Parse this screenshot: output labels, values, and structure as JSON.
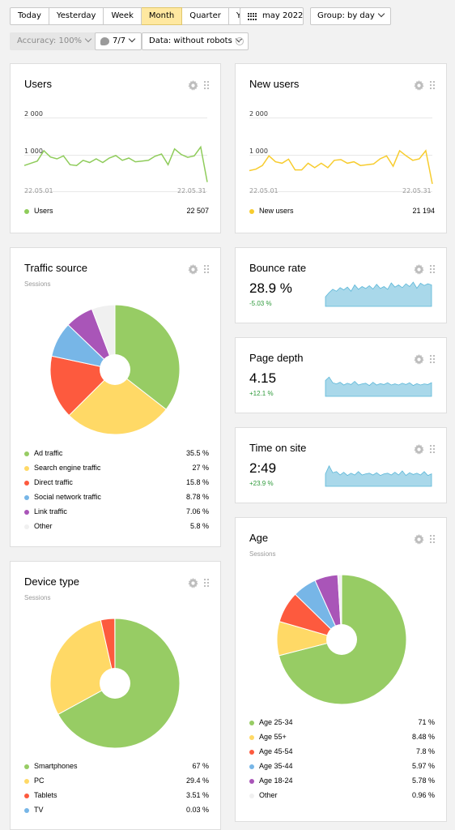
{
  "toolbar": {
    "periods": [
      "Today",
      "Yesterday",
      "Week",
      "Month",
      "Quarter",
      "Year"
    ],
    "active_period": "Month",
    "date_label": "may 2022",
    "group_label": "Group: by day",
    "accuracy_label": "Accuracy: 100%",
    "segments_label": "7/7",
    "data_label": "Data: without robots",
    "help_glyph": "?"
  },
  "users": {
    "title": "Users",
    "y_ticks": [
      "2 000",
      "1 000"
    ],
    "x_ticks": [
      "22.05.01",
      "22.05.31"
    ],
    "legend_label": "Users",
    "total": "22 507",
    "color": "#8fcc5b"
  },
  "new_users": {
    "title": "New users",
    "y_ticks": [
      "2 000",
      "1 000"
    ],
    "x_ticks": [
      "22.05.01",
      "22.05.31"
    ],
    "legend_label": "New users",
    "total": "21 194",
    "color": "#f7cc2e"
  },
  "traffic": {
    "title": "Traffic source",
    "subtitle": "Sessions",
    "items": [
      {
        "label": "Ad traffic",
        "value": "35.5 %",
        "color": "#97cc64"
      },
      {
        "label": "Search engine traffic",
        "value": "27 %",
        "color": "#ffd966"
      },
      {
        "label": "Direct traffic",
        "value": "15.8 %",
        "color": "#fd5a3e"
      },
      {
        "label": "Social network traffic",
        "value": "8.78 %",
        "color": "#77b6e7"
      },
      {
        "label": "Link traffic",
        "value": "7.06 %",
        "color": "#a955b8"
      },
      {
        "label": "Other",
        "value": "5.8 %",
        "color": "#f0f0f0"
      }
    ]
  },
  "bounce": {
    "title": "Bounce rate",
    "value": "28.9 %",
    "delta": "-5.03 %"
  },
  "depth": {
    "title": "Page depth",
    "value": "4.15",
    "delta": "+12.1 %"
  },
  "time": {
    "title": "Time on site",
    "value": "2:49",
    "delta": "+23.9 %"
  },
  "device": {
    "title": "Device type",
    "subtitle": "Sessions",
    "items": [
      {
        "label": "Smartphones",
        "value": "67 %",
        "color": "#97cc64"
      },
      {
        "label": "PC",
        "value": "29.4 %",
        "color": "#ffd966"
      },
      {
        "label": "Tablets",
        "value": "3.51 %",
        "color": "#fd5a3e"
      },
      {
        "label": "TV",
        "value": "0.03 %",
        "color": "#77b6e7"
      }
    ]
  },
  "age": {
    "title": "Age",
    "subtitle": "Sessions",
    "items": [
      {
        "label": "Age 25-34",
        "value": "71 %",
        "color": "#97cc64"
      },
      {
        "label": "Age 55+",
        "value": "8.48 %",
        "color": "#ffd966"
      },
      {
        "label": "Age 45-54",
        "value": "7.8 %",
        "color": "#fd5a3e"
      },
      {
        "label": "Age 35-44",
        "value": "5.97 %",
        "color": "#77b6e7"
      },
      {
        "label": "Age 18-24",
        "value": "5.78 %",
        "color": "#a955b8"
      },
      {
        "label": "Other",
        "value": "0.96 %",
        "color": "#f0f0f0"
      }
    ]
  },
  "chart_data": [
    {
      "type": "line",
      "series": [
        {
          "name": "Users",
          "values": [
            700,
            760,
            820,
            1100,
            930,
            880,
            960,
            720,
            700,
            840,
            780,
            880,
            780,
            900,
            970,
            840,
            900,
            800,
            820,
            840,
            950,
            1010,
            720,
            1150,
            1000,
            920,
            960,
            1200,
            250
          ]
        }
      ],
      "x_range": [
        "22.05.01",
        "22.05.31"
      ],
      "ylim": [
        0,
        2000
      ]
    },
    {
      "type": "line",
      "series": [
        {
          "name": "New users",
          "values": [
            560,
            600,
            700,
            960,
            800,
            760,
            870,
            580,
            580,
            760,
            640,
            760,
            640,
            840,
            860,
            760,
            800,
            700,
            720,
            740,
            880,
            960,
            680,
            1100,
            960,
            840,
            880,
            1100,
            200
          ]
        }
      ],
      "x_range": [
        "22.05.01",
        "22.05.31"
      ],
      "ylim": [
        0,
        2000
      ]
    },
    {
      "type": "pie",
      "title": "Traffic source",
      "labels": [
        "Ad traffic",
        "Search engine traffic",
        "Direct traffic",
        "Social network traffic",
        "Link traffic",
        "Other"
      ],
      "values": [
        35.5,
        27,
        15.8,
        8.78,
        7.06,
        5.8
      ]
    },
    {
      "type": "area",
      "title": "Bounce rate",
      "values": [
        0.35,
        0.5,
        0.62,
        0.55,
        0.68,
        0.6,
        0.7,
        0.55,
        0.78,
        0.62,
        0.72,
        0.65,
        0.75,
        0.63,
        0.8,
        0.65,
        0.72,
        0.62,
        0.85,
        0.7,
        0.78,
        0.68,
        0.82,
        0.72,
        0.88,
        0.66,
        0.84,
        0.76,
        0.82,
        0.78
      ]
    },
    {
      "type": "area",
      "title": "Page depth",
      "values": [
        0.7,
        0.85,
        0.6,
        0.55,
        0.62,
        0.5,
        0.58,
        0.52,
        0.66,
        0.5,
        0.55,
        0.58,
        0.48,
        0.62,
        0.5,
        0.56,
        0.52,
        0.6,
        0.5,
        0.55,
        0.5,
        0.58,
        0.52,
        0.6,
        0.48,
        0.56,
        0.5,
        0.55,
        0.52,
        0.6
      ]
    },
    {
      "type": "area",
      "title": "Time on site",
      "values": [
        0.55,
        0.9,
        0.6,
        0.65,
        0.5,
        0.62,
        0.48,
        0.58,
        0.5,
        0.65,
        0.5,
        0.55,
        0.58,
        0.5,
        0.6,
        0.48,
        0.55,
        0.58,
        0.5,
        0.62,
        0.5,
        0.68,
        0.48,
        0.6,
        0.52,
        0.58,
        0.5,
        0.65,
        0.48,
        0.55
      ]
    },
    {
      "type": "pie",
      "title": "Device type",
      "labels": [
        "Smartphones",
        "PC",
        "Tablets",
        "TV"
      ],
      "values": [
        67,
        29.4,
        3.51,
        0.03
      ]
    },
    {
      "type": "pie",
      "title": "Age",
      "labels": [
        "Age 25-34",
        "Age 55+",
        "Age 45-54",
        "Age 35-44",
        "Age 18-24",
        "Other"
      ],
      "values": [
        71,
        8.48,
        7.8,
        5.97,
        5.78,
        0.96
      ]
    }
  ]
}
